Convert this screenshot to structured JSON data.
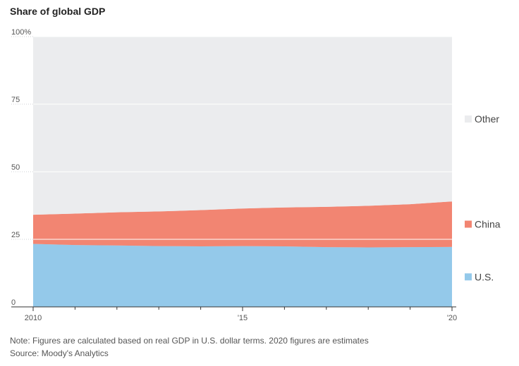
{
  "title": "Share of global GDP",
  "note": "Note: Figures are calculated based on real GDP in U.S. dollar terms. 2020 figures are estimates",
  "source": "Source: Moody's Analytics",
  "chart_data": {
    "type": "area",
    "stacked": true,
    "title": "Share of global GDP",
    "x": [
      2010,
      2011,
      2012,
      2013,
      2014,
      2015,
      2016,
      2017,
      2018,
      2019,
      2020
    ],
    "x_tick_values": [
      2010,
      2015,
      2020
    ],
    "x_tick_labels": [
      "2010",
      "'15",
      "'20"
    ],
    "y_tick_values": [
      0,
      25,
      50,
      75,
      100
    ],
    "y_tick_labels": [
      "0",
      "25",
      "50",
      "75",
      "100%"
    ],
    "ylim": [
      0,
      100
    ],
    "grid": "horizontal",
    "legend_position": "right",
    "series": [
      {
        "name": "U.S.",
        "color": "#94c9ea",
        "values": [
          23.3,
          22.9,
          22.7,
          22.5,
          22.4,
          22.5,
          22.4,
          22.1,
          22.0,
          22.1,
          22.2
        ]
      },
      {
        "name": "China",
        "color": "#f28572",
        "values": [
          10.8,
          11.6,
          12.3,
          12.8,
          13.4,
          13.9,
          14.4,
          14.9,
          15.4,
          15.9,
          16.8
        ]
      },
      {
        "name": "Other",
        "color": "#ebecee",
        "values": [
          65.9,
          65.5,
          65.0,
          64.7,
          64.2,
          63.6,
          63.2,
          63.0,
          62.6,
          62.0,
          61.0
        ]
      }
    ]
  }
}
